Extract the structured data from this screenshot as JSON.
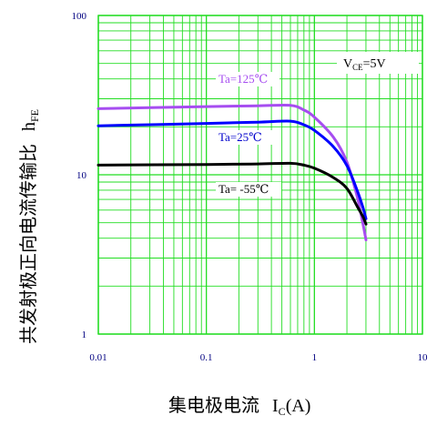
{
  "chart_data": {
    "type": "line",
    "x_scale": "log",
    "y_scale": "log",
    "xlim": [
      0.01,
      10
    ],
    "ylim": [
      1,
      100
    ],
    "grid": true,
    "xticks": [
      "0.01",
      "0.1",
      "1",
      "10"
    ],
    "yticks": [
      "1",
      "10",
      "100"
    ],
    "ylabel": "共发射极正向电流传输比",
    "ylabel_symbol": "h",
    "ylabel_sub": "FE",
    "xlabel": "集电极电流",
    "xlabel_symbol": "I",
    "xlabel_sub": "C",
    "xlabel_unit": "(A)",
    "condition": {
      "main": "V",
      "sub": "CE",
      "rest": "=5V"
    },
    "series": [
      {
        "name": "Ta=125℃",
        "color": "#a64df0",
        "points": [
          [
            0.01,
            26
          ],
          [
            0.1,
            26.8
          ],
          [
            0.3,
            27.1
          ],
          [
            0.6,
            27.3
          ],
          [
            0.8,
            25.5
          ],
          [
            1.0,
            23.0
          ],
          [
            1.5,
            17.2
          ],
          [
            2.0,
            12.0
          ],
          [
            2.5,
            7.2
          ],
          [
            2.8,
            5.0
          ],
          [
            3.0,
            3.9
          ]
        ]
      },
      {
        "name": "Ta=25℃",
        "color": "#0000ff",
        "points": [
          [
            0.01,
            20.3
          ],
          [
            0.1,
            21.0
          ],
          [
            0.3,
            21.4
          ],
          [
            0.6,
            21.7
          ],
          [
            0.8,
            20.6
          ],
          [
            1.0,
            19.0
          ],
          [
            1.5,
            15.0
          ],
          [
            2.0,
            11.4
          ],
          [
            2.5,
            7.9
          ],
          [
            2.8,
            6.3
          ],
          [
            3.0,
            5.3
          ]
        ]
      },
      {
        "name": "Ta= -55℃",
        "color": "#000000",
        "points": [
          [
            0.01,
            11.5
          ],
          [
            0.1,
            11.6
          ],
          [
            0.3,
            11.7
          ],
          [
            0.6,
            11.8
          ],
          [
            0.8,
            11.5
          ],
          [
            1.0,
            11.0
          ],
          [
            1.5,
            9.6
          ],
          [
            2.0,
            8.2
          ],
          [
            2.5,
            6.3
          ],
          [
            2.8,
            5.5
          ],
          [
            3.0,
            4.9
          ]
        ]
      }
    ]
  }
}
